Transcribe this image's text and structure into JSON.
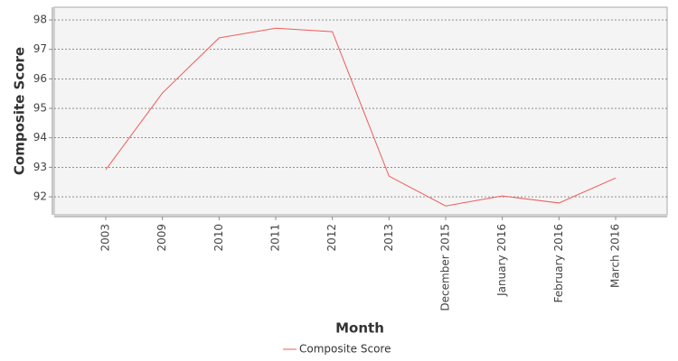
{
  "chart_data": {
    "type": "line",
    "x_label": "Month",
    "y_label": "Composite Score",
    "categories": [
      "2003",
      "2009",
      "2010",
      "2011",
      "2012",
      "2013",
      "December 2015",
      "January 2016",
      "February 2016",
      "March 2016"
    ],
    "series": [
      {
        "name": "Composite Score",
        "color": "#f05a5a",
        "values": [
          92.92,
          95.52,
          97.39,
          97.72,
          97.6,
          92.7,
          91.69,
          92.03,
          91.79,
          92.64
        ]
      }
    ],
    "ylim": [
      91.39,
      98.43
    ],
    "yticks": [
      92,
      93,
      94,
      95,
      96,
      97,
      98
    ],
    "grid": true
  }
}
